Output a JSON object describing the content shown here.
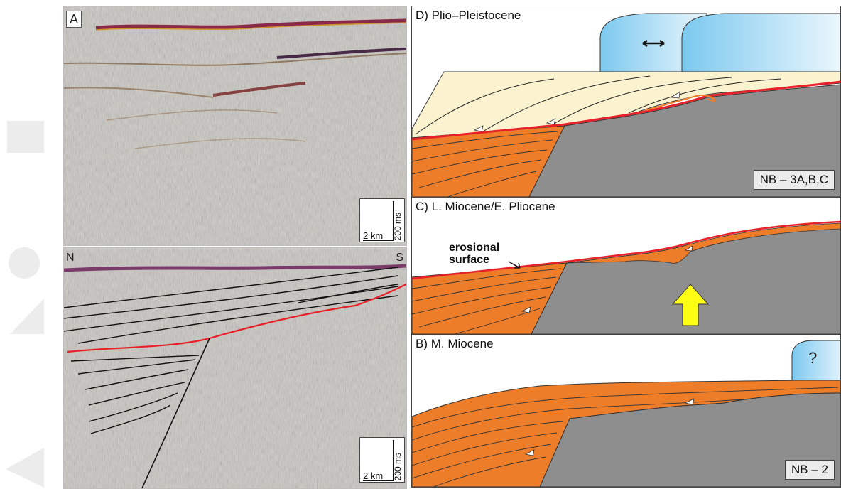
{
  "seismic_a": {
    "panel_label": "A",
    "scale_horizontal": "2 km",
    "scale_vertical": "200 ms"
  },
  "seismic_b": {
    "left_label": "N",
    "right_label": "S",
    "scale_horizontal": "2 km",
    "scale_vertical": "200 ms"
  },
  "stage_d": {
    "title": "D) Plio–Pleistocene",
    "code": "NB – 3A,B,C"
  },
  "stage_c": {
    "title": "C) L. Miocene/E. Pliocene",
    "annotation_line1": "erosional",
    "annotation_line2": "surface"
  },
  "stage_b": {
    "title": "B) M. Miocene",
    "unknown_mark": "?",
    "code": "NB – 2"
  },
  "colors": {
    "orange_sediment": "#ee7d2a",
    "gray_basement": "#8e8e8e",
    "cream_sediment": "#fbf3cf",
    "red_unconformity": "#e8202a",
    "blue_ice": "#7cc9ef",
    "yellow_uplift": "#ffff14"
  }
}
